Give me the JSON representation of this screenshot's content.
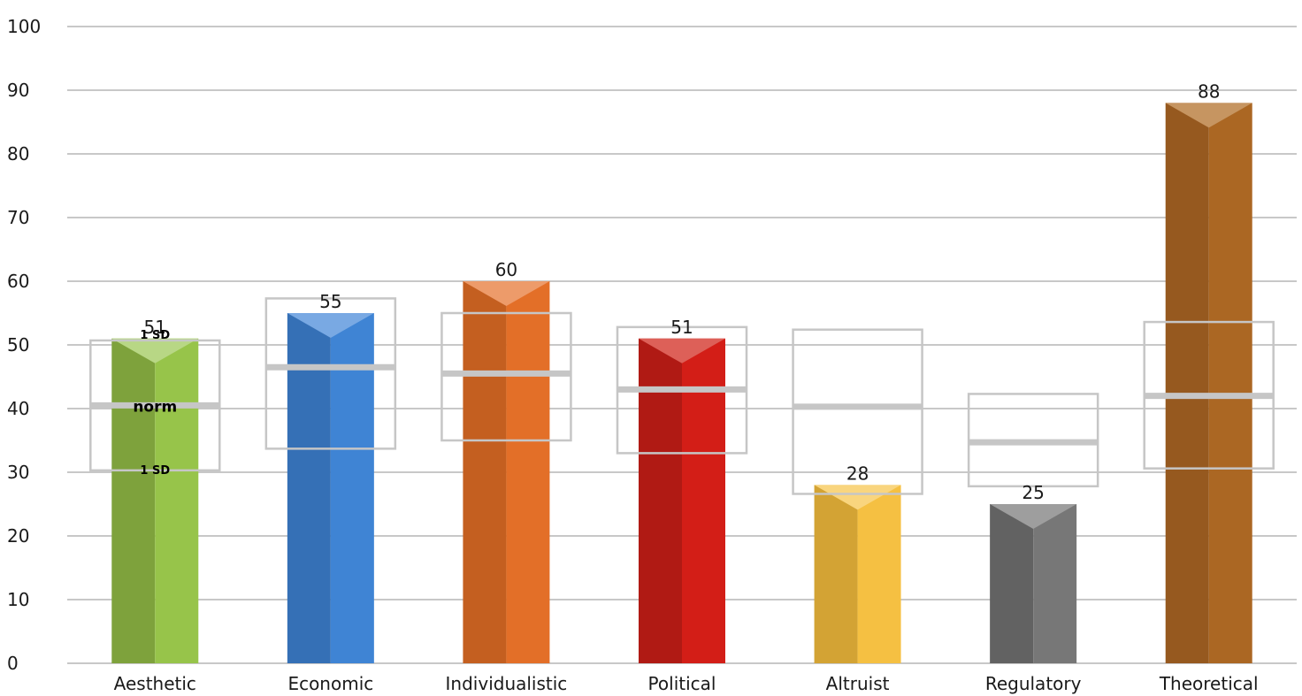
{
  "chart_data": {
    "type": "bar",
    "title": "",
    "xlabel": "",
    "ylabel": "",
    "ylim": [
      0,
      100
    ],
    "yticks": [
      0,
      10,
      20,
      30,
      40,
      50,
      60,
      70,
      80,
      90,
      100
    ],
    "grid": true,
    "legend": "none",
    "categories": [
      "Aesthetic",
      "Economic",
      "Individualistic",
      "Political",
      "Altruist",
      "Regulatory",
      "Theoretical"
    ],
    "values": [
      51,
      55,
      60,
      51,
      28,
      25,
      88
    ],
    "norm": [
      40.5,
      46.5,
      45.5,
      43,
      40.3,
      34.7,
      42
    ],
    "sd_band": [
      [
        30.3,
        50.7
      ],
      [
        33.7,
        57.3
      ],
      [
        35,
        55
      ],
      [
        33,
        52.8
      ],
      [
        26.6,
        52.4
      ],
      [
        27.8,
        42.3
      ],
      [
        30.6,
        53.6
      ]
    ],
    "annotations": {
      "sd_label": "1 SD",
      "norm_label": "norm"
    },
    "colors": [
      {
        "left": "#7ea23c",
        "right": "#97c44a",
        "top": "#b8d785"
      },
      {
        "left": "#3570b6",
        "right": "#3f84d4",
        "top": "#79a9e3"
      },
      {
        "left": "#c45f20",
        "right": "#e36f28",
        "top": "#ed9b6a"
      },
      {
        "left": "#b01a14",
        "right": "#d31e17",
        "top": "#dd6058"
      },
      {
        "left": "#d3a334",
        "right": "#f5c042",
        "top": "#f9d57e"
      },
      {
        "left": "#626262",
        "right": "#777777",
        "top": "#9e9e9e"
      },
      {
        "left": "#96591f",
        "right": "#ab6723",
        "top": "#c69561"
      }
    ],
    "band_color": "#c6c6c6",
    "grid_color": "#c8c8c8"
  }
}
